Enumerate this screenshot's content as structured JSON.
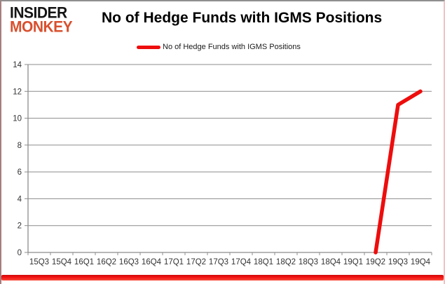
{
  "logo": {
    "line1": "INSIDER",
    "line2": "MONKEY"
  },
  "header": {
    "title": "No of Hedge Funds with IGMS Positions"
  },
  "legend": {
    "label": "No of Hedge Funds with IGMS Positions"
  },
  "colors": {
    "series_red": "#ee0d0d",
    "logo_orange": "#d9502e",
    "grid_gray": "#8c8c8c",
    "axis_label": "#333333",
    "bottom_bar_red": "#f41414"
  },
  "chart_data": {
    "type": "line",
    "title": "No of Hedge Funds with IGMS Positions",
    "xlabel": "",
    "ylabel": "",
    "categories": [
      "15Q3",
      "15Q4",
      "16Q1",
      "16Q2",
      "16Q3",
      "16Q4",
      "17Q1",
      "17Q2",
      "17Q3",
      "17Q4",
      "18Q1",
      "18Q2",
      "18Q3",
      "18Q4",
      "19Q1",
      "19Q2",
      "19Q3",
      "19Q4"
    ],
    "series": [
      {
        "name": "No of Hedge Funds with IGMS Positions",
        "color": "#ee0d0d",
        "values": [
          null,
          null,
          null,
          null,
          null,
          null,
          null,
          null,
          null,
          null,
          null,
          null,
          null,
          null,
          null,
          0,
          11,
          12
        ]
      }
    ],
    "ylim": [
      0,
      14
    ],
    "ytick_step": 2,
    "grid": true,
    "legend_position": "top"
  }
}
